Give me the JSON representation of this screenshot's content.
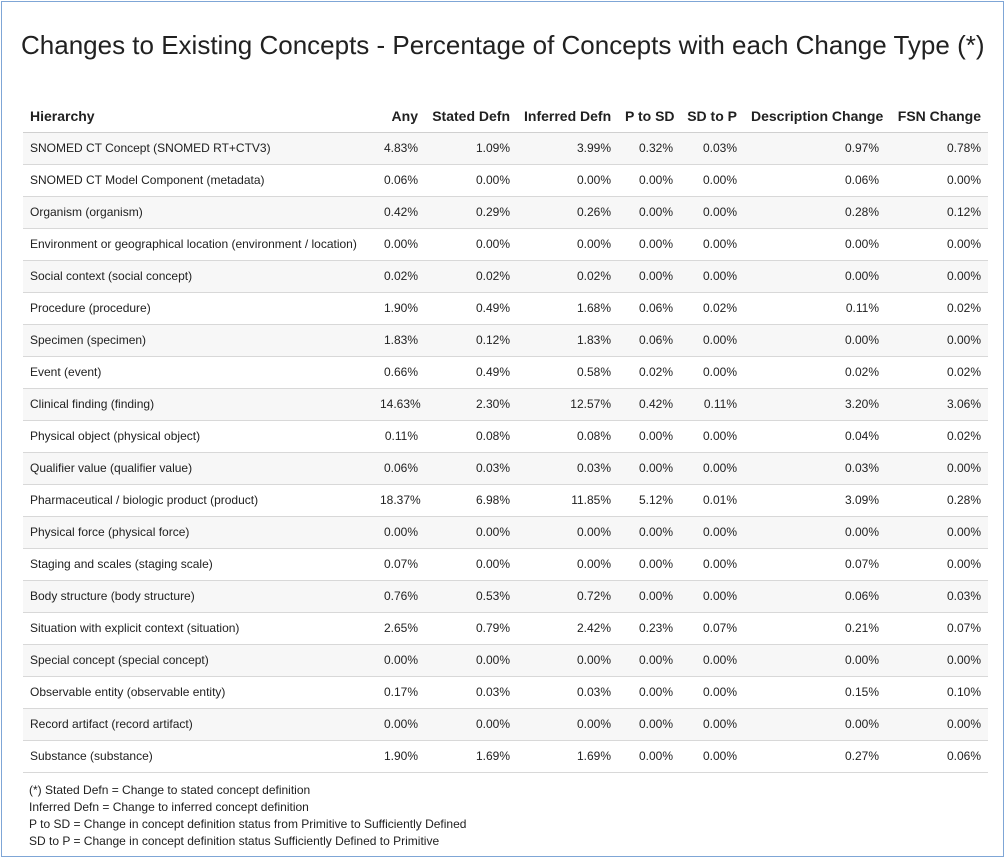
{
  "title": "Changes to Existing Concepts - Percentage of Concepts with each Change Type (*)",
  "columns": [
    "Hierarchy",
    "Any",
    "Stated Defn",
    "Inferred Defn",
    "P to SD",
    "SD to P",
    "Description Change",
    "FSN Change"
  ],
  "rows": [
    [
      "SNOMED CT Concept (SNOMED RT+CTV3)",
      "4.83%",
      "1.09%",
      "3.99%",
      "0.32%",
      "0.03%",
      "0.97%",
      "0.78%"
    ],
    [
      "SNOMED CT Model Component (metadata)",
      "0.06%",
      "0.00%",
      "0.00%",
      "0.00%",
      "0.00%",
      "0.06%",
      "0.00%"
    ],
    [
      "Organism (organism)",
      "0.42%",
      "0.29%",
      "0.26%",
      "0.00%",
      "0.00%",
      "0.28%",
      "0.12%"
    ],
    [
      "Environment or geographical location (environment / location)",
      "0.00%",
      "0.00%",
      "0.00%",
      "0.00%",
      "0.00%",
      "0.00%",
      "0.00%"
    ],
    [
      "Social context (social concept)",
      "0.02%",
      "0.02%",
      "0.02%",
      "0.00%",
      "0.00%",
      "0.00%",
      "0.00%"
    ],
    [
      "Procedure (procedure)",
      "1.90%",
      "0.49%",
      "1.68%",
      "0.06%",
      "0.02%",
      "0.11%",
      "0.02%"
    ],
    [
      "Specimen (specimen)",
      "1.83%",
      "0.12%",
      "1.83%",
      "0.06%",
      "0.00%",
      "0.00%",
      "0.00%"
    ],
    [
      "Event (event)",
      "0.66%",
      "0.49%",
      "0.58%",
      "0.02%",
      "0.00%",
      "0.02%",
      "0.02%"
    ],
    [
      "Clinical finding (finding)",
      "14.63%",
      "2.30%",
      "12.57%",
      "0.42%",
      "0.11%",
      "3.20%",
      "3.06%"
    ],
    [
      "Physical object (physical object)",
      "0.11%",
      "0.08%",
      "0.08%",
      "0.00%",
      "0.00%",
      "0.04%",
      "0.02%"
    ],
    [
      "Qualifier value (qualifier value)",
      "0.06%",
      "0.03%",
      "0.03%",
      "0.00%",
      "0.00%",
      "0.03%",
      "0.00%"
    ],
    [
      "Pharmaceutical / biologic product (product)",
      "18.37%",
      "6.98%",
      "11.85%",
      "5.12%",
      "0.01%",
      "3.09%",
      "0.28%"
    ],
    [
      "Physical force (physical force)",
      "0.00%",
      "0.00%",
      "0.00%",
      "0.00%",
      "0.00%",
      "0.00%",
      "0.00%"
    ],
    [
      "Staging and scales (staging scale)",
      "0.07%",
      "0.00%",
      "0.00%",
      "0.00%",
      "0.00%",
      "0.07%",
      "0.00%"
    ],
    [
      "Body structure (body structure)",
      "0.76%",
      "0.53%",
      "0.72%",
      "0.00%",
      "0.00%",
      "0.06%",
      "0.03%"
    ],
    [
      "Situation with explicit context (situation)",
      "2.65%",
      "0.79%",
      "2.42%",
      "0.23%",
      "0.07%",
      "0.21%",
      "0.07%"
    ],
    [
      "Special concept (special concept)",
      "0.00%",
      "0.00%",
      "0.00%",
      "0.00%",
      "0.00%",
      "0.00%",
      "0.00%"
    ],
    [
      "Observable entity (observable entity)",
      "0.17%",
      "0.03%",
      "0.03%",
      "0.00%",
      "0.00%",
      "0.15%",
      "0.10%"
    ],
    [
      "Record artifact (record artifact)",
      "0.00%",
      "0.00%",
      "0.00%",
      "0.00%",
      "0.00%",
      "0.00%",
      "0.00%"
    ],
    [
      "Substance (substance)",
      "1.90%",
      "1.69%",
      "1.69%",
      "0.00%",
      "0.00%",
      "0.27%",
      "0.06%"
    ]
  ],
  "footnotes": [
    "(*) Stated Defn = Change to stated concept definition",
    "Inferred Defn = Change to inferred concept definition",
    "P to SD = Change in concept definition status from Primitive to Sufficiently Defined",
    "SD to P = Change in concept definition status Sufficiently Defined to Primitive"
  ]
}
